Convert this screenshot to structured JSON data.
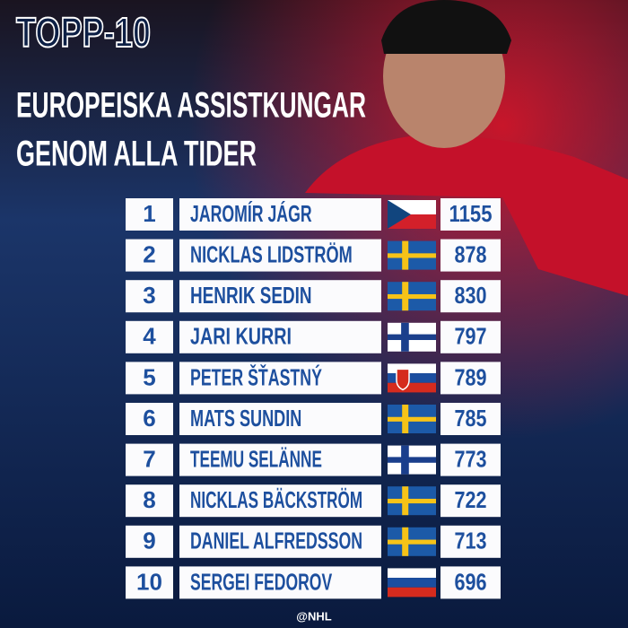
{
  "header": {
    "title": "TOPP-10",
    "subtitle_lines": [
      "EUROPEISKA ASSISTKUNGAR",
      "GENOM ALLA TIDER"
    ]
  },
  "table": {
    "rows": [
      [
        1,
        "JAROMÍR JÁGR",
        1155
      ],
      [
        2,
        "NICKLAS LIDSTRÖM",
        878
      ],
      [
        3,
        "HENRIK SEDIN",
        830
      ],
      [
        4,
        "JARI KURRI",
        797
      ],
      [
        5,
        "PETER ŠŤASTNÝ",
        789
      ],
      [
        6,
        "MATS SUNDIN",
        785
      ],
      [
        7,
        "TEEMU SELÄNNE",
        773
      ],
      [
        8,
        "NICKLAS BÄCKSTRÖM",
        722
      ],
      [
        9,
        "DANIEL ALFREDSSON",
        713
      ],
      [
        10,
        "SERGEI FEDOROV",
        696
      ]
    ]
  },
  "footer": "@NHL"
}
